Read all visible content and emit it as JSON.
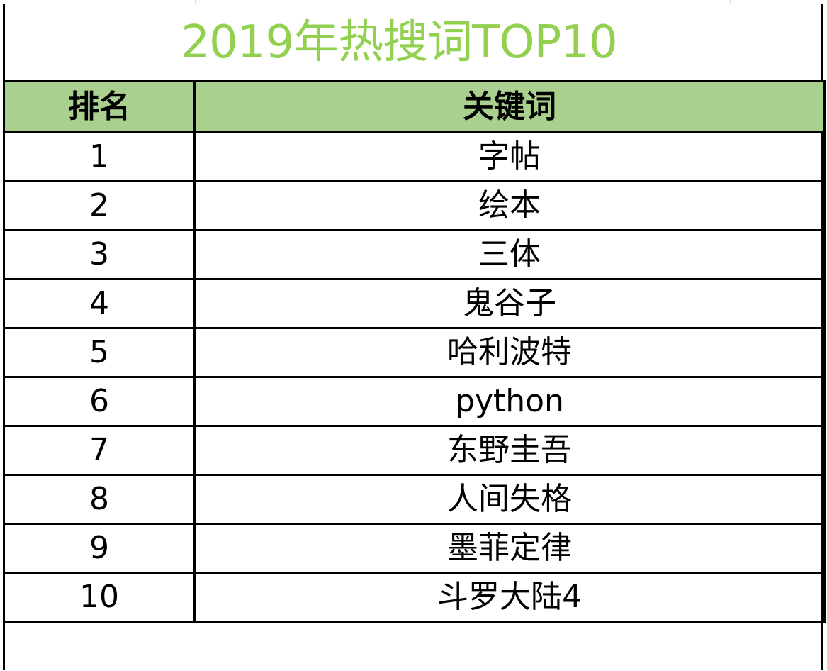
{
  "sheet": {
    "title": "2019年热搜词TOP10",
    "title_color": "#92d050",
    "header_fill": "#a9d08e",
    "columns": [
      "排名",
      "关键词"
    ],
    "rows": [
      {
        "rank": "1",
        "keyword": "字帖"
      },
      {
        "rank": "2",
        "keyword": "绘本"
      },
      {
        "rank": "3",
        "keyword": "三体"
      },
      {
        "rank": "4",
        "keyword": "鬼谷子"
      },
      {
        "rank": "5",
        "keyword": "哈利波特"
      },
      {
        "rank": "6",
        "keyword": "python"
      },
      {
        "rank": "7",
        "keyword": "东野圭吾"
      },
      {
        "rank": "8",
        "keyword": "人间失格"
      },
      {
        "rank": "9",
        "keyword": "墨菲定律"
      },
      {
        "rank": "10",
        "keyword": "斗罗大陆4"
      }
    ]
  }
}
